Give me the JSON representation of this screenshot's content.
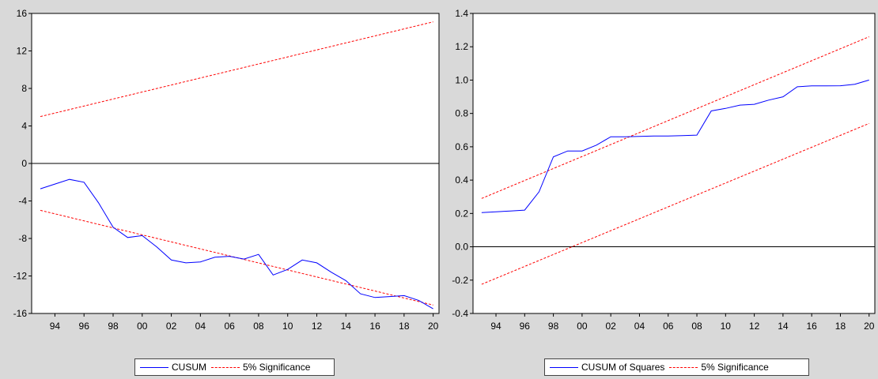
{
  "chart_data": [
    {
      "type": "line",
      "x_ticks": [
        "94",
        "96",
        "98",
        "00",
        "02",
        "04",
        "06",
        "08",
        "10",
        "12",
        "14",
        "16",
        "18",
        "20"
      ],
      "ylim": [
        -16,
        16
      ],
      "y_ticks": [
        "16",
        "12",
        "8",
        "4",
        "0",
        "-4",
        "-8",
        "-12",
        "-16"
      ],
      "x": [
        1993,
        1994,
        1995,
        1996,
        1997,
        1998,
        1999,
        2000,
        2001,
        2002,
        2003,
        2004,
        2005,
        2006,
        2007,
        2008,
        2009,
        2010,
        2011,
        2012,
        2013,
        2014,
        2015,
        2016,
        2017,
        2018,
        2019,
        2020
      ],
      "series": [
        {
          "name": "CUSUM",
          "color": "#0000ff",
          "style": "solid",
          "values": [
            -2.7,
            -2.2,
            -1.7,
            -2.0,
            -4.2,
            -6.8,
            -7.9,
            -7.7,
            -8.9,
            -10.3,
            -10.6,
            -10.5,
            -10.0,
            -9.9,
            -10.2,
            -9.7,
            -11.9,
            -11.3,
            -10.3,
            -10.6,
            -11.6,
            -12.5,
            -13.9,
            -14.3,
            -14.2,
            -14.1,
            -14.6,
            -15.5
          ]
        },
        {
          "name": "5% Significance",
          "color": "#ff0000",
          "style": "dashed",
          "upper": {
            "x": [
              1993,
              2020
            ],
            "values": [
              5.0,
              15.1
            ]
          },
          "lower": {
            "x": [
              1993,
              2020
            ],
            "values": [
              -5.0,
              -15.1
            ]
          }
        }
      ],
      "zero_line": true,
      "legend": {
        "position": "bottom",
        "labels": [
          "CUSUM",
          "5% Significance"
        ]
      }
    },
    {
      "type": "line",
      "x_ticks": [
        "94",
        "96",
        "98",
        "00",
        "02",
        "04",
        "06",
        "08",
        "10",
        "12",
        "14",
        "16",
        "18",
        "20"
      ],
      "ylim": [
        -0.4,
        1.4
      ],
      "y_ticks": [
        "1.4",
        "1.2",
        "1.0",
        "0.8",
        "0.6",
        "0.4",
        "0.2",
        "0.0",
        "-0.2",
        "-0.4"
      ],
      "x": [
        1993,
        1994,
        1995,
        1996,
        1997,
        1998,
        1999,
        2000,
        2001,
        2002,
        2003,
        2004,
        2005,
        2006,
        2007,
        2008,
        2009,
        2010,
        2011,
        2012,
        2013,
        2014,
        2015,
        2016,
        2017,
        2018,
        2019,
        2020
      ],
      "series": [
        {
          "name": "CUSUM of Squares",
          "color": "#0000ff",
          "style": "solid",
          "values": [
            0.205,
            0.21,
            0.215,
            0.22,
            0.33,
            0.54,
            0.575,
            0.575,
            0.61,
            0.66,
            0.66,
            0.662,
            0.665,
            0.665,
            0.667,
            0.67,
            0.815,
            0.83,
            0.85,
            0.855,
            0.88,
            0.9,
            0.96,
            0.965,
            0.965,
            0.966,
            0.975,
            1.0
          ]
        },
        {
          "name": "5% Significance",
          "color": "#ff0000",
          "style": "dashed",
          "upper": {
            "x": [
              1993,
              2020
            ],
            "values": [
              0.29,
              1.26
            ]
          },
          "lower": {
            "x": [
              1993,
              2020
            ],
            "values": [
              -0.225,
              0.74
            ]
          }
        }
      ],
      "zero_line": true,
      "legend": {
        "position": "bottom",
        "labels": [
          "CUSUM of Squares",
          "5% Significance"
        ]
      }
    }
  ]
}
